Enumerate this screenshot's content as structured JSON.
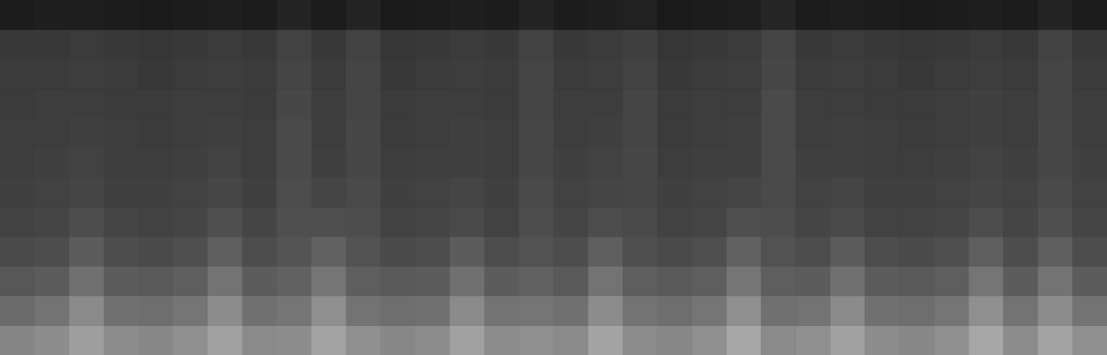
{
  "chart_data": {
    "type": "heatmap",
    "tick_labels": false,
    "grid": false,
    "xlim": [
      0,
      32
    ],
    "ylim": [
      0,
      12
    ],
    "zlim": [
      0,
      1
    ],
    "cells": [
      [
        0.52,
        0.55,
        0.62,
        0.55,
        0.53,
        0.56,
        0.63,
        0.54,
        0.55,
        0.64,
        0.56,
        0.53,
        0.55,
        0.63,
        0.55,
        0.56,
        0.54,
        0.64,
        0.55,
        0.53,
        0.56,
        0.65,
        0.54,
        0.56,
        0.63,
        0.55,
        0.53,
        0.56,
        0.65,
        0.55,
        0.64,
        0.56
      ],
      [
        0.42,
        0.45,
        0.54,
        0.44,
        0.43,
        0.46,
        0.55,
        0.44,
        0.46,
        0.56,
        0.45,
        0.43,
        0.44,
        0.54,
        0.45,
        0.46,
        0.44,
        0.55,
        0.45,
        0.43,
        0.46,
        0.56,
        0.44,
        0.45,
        0.54,
        0.44,
        0.43,
        0.46,
        0.56,
        0.45,
        0.55,
        0.45
      ],
      [
        0.34,
        0.36,
        0.44,
        0.36,
        0.35,
        0.37,
        0.45,
        0.36,
        0.38,
        0.46,
        0.37,
        0.35,
        0.36,
        0.44,
        0.36,
        0.38,
        0.35,
        0.45,
        0.37,
        0.35,
        0.37,
        0.46,
        0.37,
        0.36,
        0.44,
        0.36,
        0.35,
        0.37,
        0.46,
        0.36,
        0.45,
        0.36
      ],
      [
        0.29,
        0.3,
        0.36,
        0.3,
        0.29,
        0.31,
        0.37,
        0.3,
        0.33,
        0.38,
        0.32,
        0.29,
        0.3,
        0.36,
        0.3,
        0.32,
        0.3,
        0.37,
        0.31,
        0.29,
        0.31,
        0.38,
        0.32,
        0.3,
        0.36,
        0.3,
        0.29,
        0.31,
        0.37,
        0.3,
        0.37,
        0.3
      ],
      [
        0.26,
        0.27,
        0.3,
        0.27,
        0.26,
        0.27,
        0.31,
        0.27,
        0.31,
        0.31,
        0.3,
        0.26,
        0.27,
        0.29,
        0.26,
        0.3,
        0.27,
        0.3,
        0.29,
        0.26,
        0.27,
        0.31,
        0.3,
        0.27,
        0.29,
        0.26,
        0.26,
        0.27,
        0.3,
        0.27,
        0.31,
        0.27
      ],
      [
        0.25,
        0.26,
        0.27,
        0.25,
        0.25,
        0.26,
        0.28,
        0.25,
        0.3,
        0.27,
        0.29,
        0.25,
        0.26,
        0.27,
        0.25,
        0.29,
        0.26,
        0.27,
        0.28,
        0.25,
        0.26,
        0.27,
        0.29,
        0.26,
        0.27,
        0.25,
        0.25,
        0.26,
        0.27,
        0.26,
        0.29,
        0.26
      ],
      [
        0.24,
        0.25,
        0.26,
        0.24,
        0.24,
        0.25,
        0.26,
        0.24,
        0.29,
        0.25,
        0.28,
        0.24,
        0.25,
        0.25,
        0.24,
        0.28,
        0.25,
        0.26,
        0.28,
        0.24,
        0.25,
        0.25,
        0.29,
        0.25,
        0.25,
        0.24,
        0.24,
        0.25,
        0.26,
        0.25,
        0.28,
        0.25
      ],
      [
        0.24,
        0.24,
        0.25,
        0.24,
        0.23,
        0.24,
        0.25,
        0.24,
        0.29,
        0.24,
        0.28,
        0.23,
        0.24,
        0.25,
        0.24,
        0.28,
        0.24,
        0.25,
        0.27,
        0.23,
        0.24,
        0.25,
        0.29,
        0.24,
        0.25,
        0.24,
        0.23,
        0.24,
        0.25,
        0.24,
        0.28,
        0.24
      ],
      [
        0.23,
        0.24,
        0.24,
        0.23,
        0.23,
        0.24,
        0.24,
        0.23,
        0.28,
        0.24,
        0.27,
        0.23,
        0.24,
        0.24,
        0.23,
        0.27,
        0.24,
        0.24,
        0.27,
        0.23,
        0.24,
        0.24,
        0.29,
        0.24,
        0.24,
        0.23,
        0.23,
        0.24,
        0.25,
        0.24,
        0.27,
        0.24
      ],
      [
        0.23,
        0.23,
        0.24,
        0.23,
        0.22,
        0.23,
        0.24,
        0.23,
        0.27,
        0.23,
        0.27,
        0.22,
        0.23,
        0.24,
        0.23,
        0.27,
        0.23,
        0.24,
        0.26,
        0.22,
        0.23,
        0.24,
        0.28,
        0.23,
        0.24,
        0.23,
        0.22,
        0.23,
        0.24,
        0.23,
        0.27,
        0.23
      ],
      [
        0.22,
        0.22,
        0.23,
        0.22,
        0.21,
        0.22,
        0.23,
        0.22,
        0.26,
        0.22,
        0.26,
        0.21,
        0.22,
        0.23,
        0.22,
        0.26,
        0.22,
        0.23,
        0.25,
        0.21,
        0.22,
        0.23,
        0.27,
        0.22,
        0.23,
        0.22,
        0.21,
        0.22,
        0.23,
        0.22,
        0.26,
        0.22
      ],
      [
        0.11,
        0.12,
        0.12,
        0.11,
        0.1,
        0.11,
        0.12,
        0.11,
        0.14,
        0.11,
        0.14,
        0.1,
        0.11,
        0.12,
        0.11,
        0.14,
        0.11,
        0.12,
        0.13,
        0.1,
        0.11,
        0.12,
        0.15,
        0.11,
        0.12,
        0.11,
        0.1,
        0.11,
        0.12,
        0.11,
        0.14,
        0.11
      ]
    ]
  }
}
